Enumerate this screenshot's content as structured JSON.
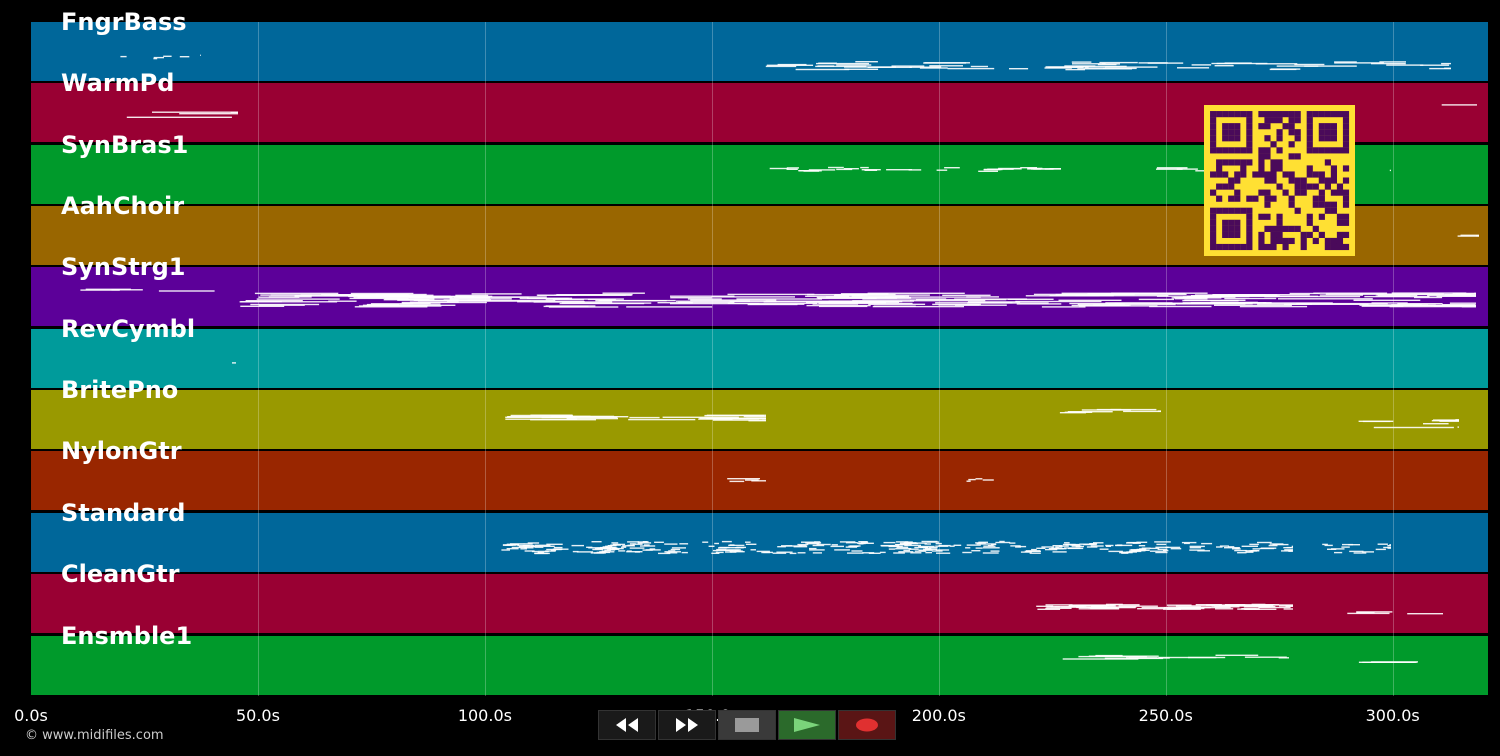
{
  "tracks": [
    {
      "name": "FngrBass",
      "color": "#00679a"
    },
    {
      "name": "WarmPd",
      "color": "#990033"
    },
    {
      "name": "SynBras1",
      "color": "#009a2b"
    },
    {
      "name": "AahChoir",
      "color": "#996600"
    },
    {
      "name": "SynStrg1",
      "color": "#5c0099"
    },
    {
      "name": "RevCymbl",
      "color": "#009b9b"
    },
    {
      "name": "BritePno",
      "color": "#999900"
    },
    {
      "name": "NylonGtr",
      "color": "#992600"
    },
    {
      "name": "Standard",
      "color": "#00679a"
    },
    {
      "name": "CleanGtr",
      "color": "#990033"
    },
    {
      "name": "Ensmble1",
      "color": "#009a2b"
    }
  ],
  "timeline": {
    "max_seconds": 321,
    "ticks": [
      {
        "seconds": 0,
        "label": "0.0s"
      },
      {
        "seconds": 50,
        "label": "50.0s"
      },
      {
        "seconds": 100,
        "label": "100.0s"
      },
      {
        "seconds": 150,
        "label": "150.0s"
      },
      {
        "seconds": 200,
        "label": "200.0s"
      },
      {
        "seconds": 250,
        "label": "250.0s"
      },
      {
        "seconds": 300,
        "label": "300.0s"
      }
    ]
  },
  "transport": {
    "rewind_icon": "rewind-icon",
    "fast_forward_icon": "fast-forward-icon",
    "stop_icon": "stop-icon",
    "play_icon": "play-icon",
    "record_icon": "record-icon"
  },
  "qr_code": {
    "fg": "#4a0a5a",
    "bg": "#ffe033"
  },
  "copyright": "© www.midifiles.com"
}
